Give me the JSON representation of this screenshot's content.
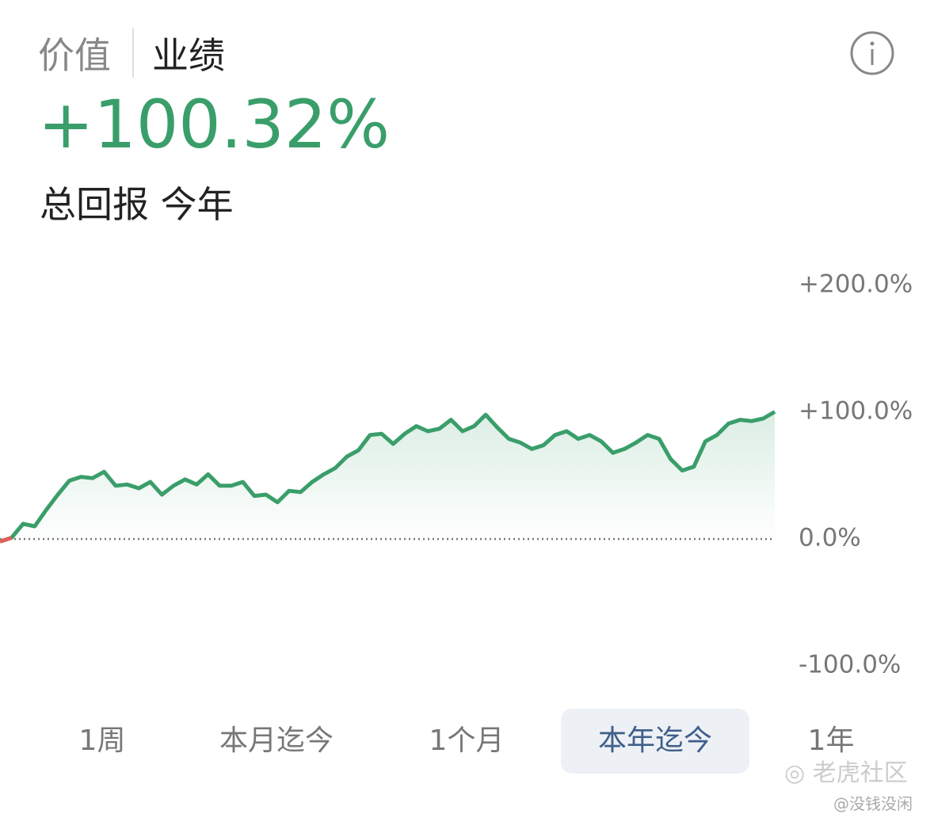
{
  "tabs": [
    "价值",
    "业绩"
  ],
  "active_tab": 1,
  "headline": "+100.32%",
  "subtitle": "总回报 今年",
  "chart_data": {
    "type": "line",
    "color": "#3a9e6a",
    "negative_color": "#e0605a",
    "values": [
      -2,
      1,
      12,
      10,
      23,
      35,
      46,
      49,
      48,
      53,
      42,
      43,
      40,
      45,
      35,
      42,
      47,
      43,
      51,
      42,
      42,
      45,
      34,
      35,
      29,
      38,
      37,
      45,
      51,
      56,
      65,
      70,
      82,
      83,
      75,
      83,
      89,
      85,
      87,
      94,
      85,
      89,
      98,
      88,
      79,
      76,
      71,
      74,
      82,
      85,
      79,
      82,
      77,
      68,
      71,
      76,
      82,
      79,
      63,
      54,
      57,
      77,
      82,
      91,
      94,
      93,
      95,
      100.32
    ],
    "ylim": [
      -100,
      200
    ],
    "yticks": [
      {
        "value": 200,
        "label": "+200.0%"
      },
      {
        "value": 100,
        "label": "+100.0%"
      },
      {
        "value": 0,
        "label": "0.0%"
      },
      {
        "value": -100,
        "label": "-100.0%"
      }
    ]
  },
  "periods": [
    "1周",
    "本月迄今",
    "1个月",
    "本年迄今",
    "1年"
  ],
  "active_period": 3,
  "watermark": "老虎社区",
  "author": "@没钱没闲"
}
